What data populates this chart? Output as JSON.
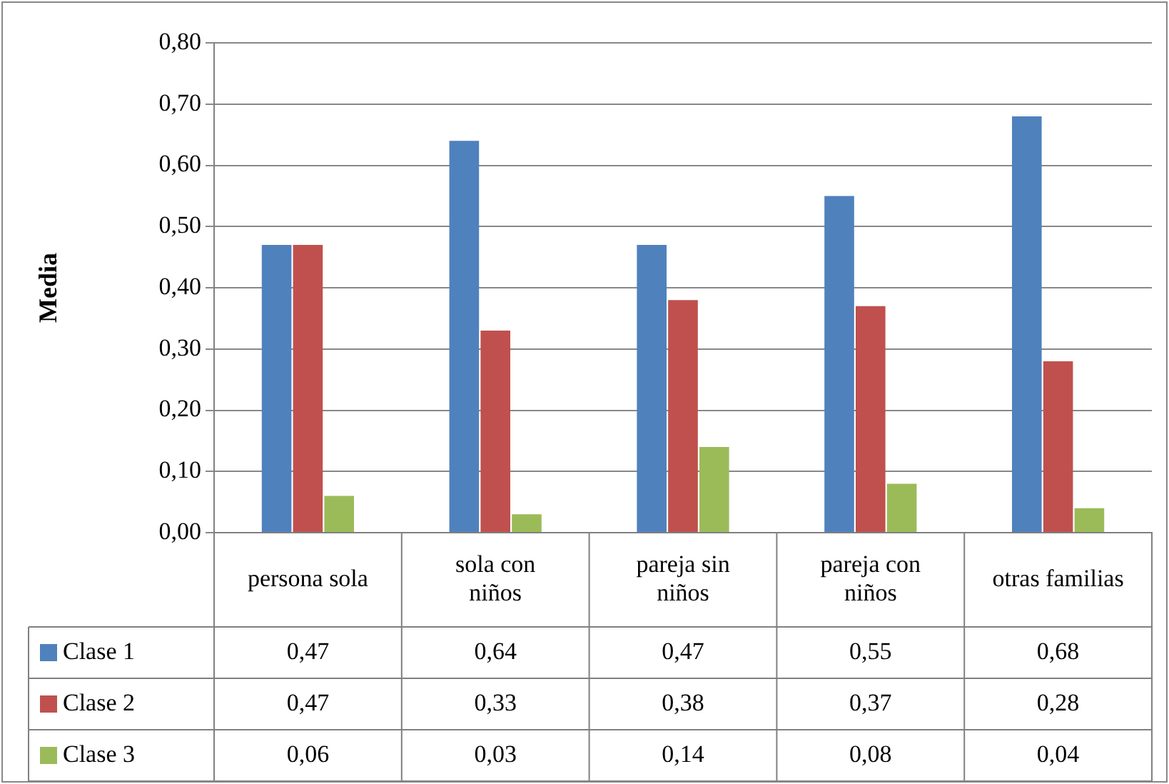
{
  "chart_data": {
    "type": "bar",
    "ylabel": "Media",
    "categories": [
      "persona sola",
      "sola con niños",
      "pareja sin niños",
      "pareja con niños",
      "otras familias"
    ],
    "series": [
      {
        "name": "Clase 1",
        "color": "#4f81bd",
        "values": [
          0.47,
          0.64,
          0.47,
          0.55,
          0.68
        ],
        "value_labels": [
          "0,47",
          "0,64",
          "0,47",
          "0,55",
          "0,68"
        ]
      },
      {
        "name": "Clase 2",
        "color": "#c0504d",
        "values": [
          0.47,
          0.33,
          0.38,
          0.37,
          0.28
        ],
        "value_labels": [
          "0,47",
          "0,33",
          "0,38",
          "0,37",
          "0,28"
        ]
      },
      {
        "name": "Clase 3",
        "color": "#9bbb59",
        "values": [
          0.06,
          0.03,
          0.14,
          0.08,
          0.04
        ],
        "value_labels": [
          "0,06",
          "0,03",
          "0,14",
          "0,08",
          "0,04"
        ]
      }
    ],
    "ylim": [
      0,
      0.8
    ],
    "yticks": [
      {
        "value": 0,
        "label": "0,00"
      },
      {
        "value": 0.1,
        "label": "0,10"
      },
      {
        "value": 0.2,
        "label": "0,20"
      },
      {
        "value": 0.3,
        "label": "0,30"
      },
      {
        "value": 0.4,
        "label": "0,40"
      },
      {
        "value": 0.5,
        "label": "0,50"
      },
      {
        "value": 0.6,
        "label": "0,60"
      },
      {
        "value": 0.7,
        "label": "0,70"
      },
      {
        "value": 0.8,
        "label": "0,80"
      }
    ],
    "grid": "y",
    "legend": "bottom left"
  }
}
